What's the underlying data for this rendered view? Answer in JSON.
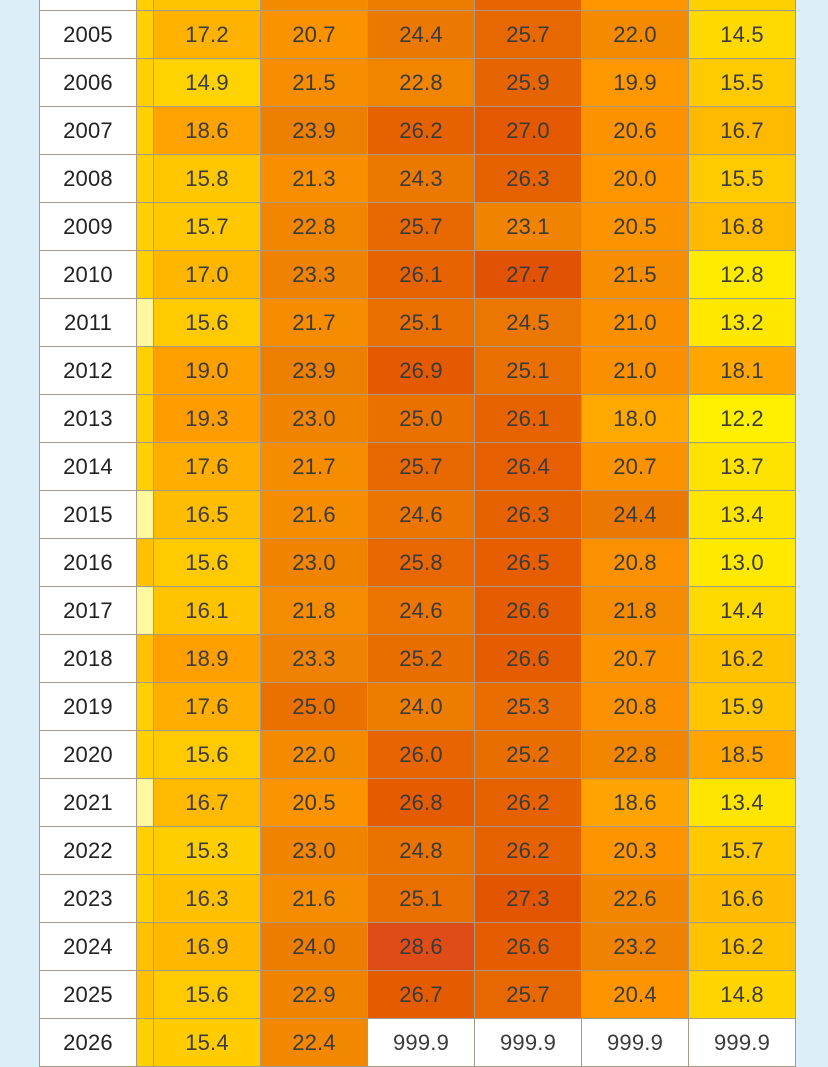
{
  "colors": {
    "missing": "#ffffff",
    "scale": [
      {
        "v": 12.0,
        "c": "#fff200"
      },
      {
        "v": 14.0,
        "c": "#ffe000"
      },
      {
        "v": 16.0,
        "c": "#ffc400"
      },
      {
        "v": 18.0,
        "c": "#ffa800"
      },
      {
        "v": 20.0,
        "c": "#ff9600"
      },
      {
        "v": 22.0,
        "c": "#f48a00"
      },
      {
        "v": 24.0,
        "c": "#ec7d00"
      },
      {
        "v": 26.0,
        "c": "#e76400"
      },
      {
        "v": 27.5,
        "c": "#e35300"
      },
      {
        "v": 29.0,
        "c": "#dd4a20"
      }
    ]
  },
  "chart_data": {
    "type": "heatmap",
    "missing_value": 999.9,
    "rows": [
      {
        "year": "2005",
        "strip": "#ffd000",
        "values": [
          "17.2",
          "20.7",
          "24.4",
          "25.7",
          "22.0",
          "14.5"
        ]
      },
      {
        "year": "2006",
        "strip": "#ffd000",
        "values": [
          "14.9",
          "21.5",
          "22.8",
          "25.9",
          "19.9",
          "15.5"
        ]
      },
      {
        "year": "2007",
        "strip": "#ffd000",
        "values": [
          "18.6",
          "23.9",
          "26.2",
          "27.0",
          "20.6",
          "16.7"
        ]
      },
      {
        "year": "2008",
        "strip": "#ffd000",
        "values": [
          "15.8",
          "21.3",
          "24.3",
          "26.3",
          "20.0",
          "15.5"
        ]
      },
      {
        "year": "2009",
        "strip": "#ffd000",
        "values": [
          "15.7",
          "22.8",
          "25.7",
          "23.1",
          "20.5",
          "16.8"
        ]
      },
      {
        "year": "2010",
        "strip": "#ffd000",
        "values": [
          "17.0",
          "23.3",
          "26.1",
          "27.7",
          "21.5",
          "12.8"
        ]
      },
      {
        "year": "2011",
        "strip": "#fff8a0",
        "values": [
          "15.6",
          "21.7",
          "25.1",
          "24.5",
          "21.0",
          "13.2"
        ]
      },
      {
        "year": "2012",
        "strip": "#ffd000",
        "values": [
          "19.0",
          "23.9",
          "26.9",
          "25.1",
          "21.0",
          "18.1"
        ]
      },
      {
        "year": "2013",
        "strip": "#ffd000",
        "values": [
          "19.3",
          "23.0",
          "25.0",
          "26.1",
          "18.0",
          "12.2"
        ]
      },
      {
        "year": "2014",
        "strip": "#ffd000",
        "values": [
          "17.6",
          "21.7",
          "25.7",
          "26.4",
          "20.7",
          "13.7"
        ]
      },
      {
        "year": "2015",
        "strip": "#fff8a0",
        "values": [
          "16.5",
          "21.6",
          "24.6",
          "26.3",
          "24.4",
          "13.4"
        ]
      },
      {
        "year": "2016",
        "strip": "#ffc000",
        "values": [
          "15.6",
          "23.0",
          "25.8",
          "26.5",
          "20.8",
          "13.0"
        ]
      },
      {
        "year": "2017",
        "strip": "#fff8a0",
        "values": [
          "16.1",
          "21.8",
          "24.6",
          "26.6",
          "21.8",
          "14.4"
        ]
      },
      {
        "year": "2018",
        "strip": "#ffc000",
        "values": [
          "18.9",
          "23.3",
          "25.2",
          "26.6",
          "20.7",
          "16.2"
        ]
      },
      {
        "year": "2019",
        "strip": "#ffd000",
        "values": [
          "17.6",
          "25.0",
          "24.0",
          "25.3",
          "20.8",
          "15.9"
        ]
      },
      {
        "year": "2020",
        "strip": "#ffd000",
        "values": [
          "15.6",
          "22.0",
          "26.0",
          "25.2",
          "22.8",
          "18.5"
        ]
      },
      {
        "year": "2021",
        "strip": "#fff8a0",
        "values": [
          "16.7",
          "20.5",
          "26.8",
          "26.2",
          "18.6",
          "13.4"
        ]
      },
      {
        "year": "2022",
        "strip": "#ffd000",
        "values": [
          "15.3",
          "23.0",
          "24.8",
          "26.2",
          "20.3",
          "15.7"
        ]
      },
      {
        "year": "2023",
        "strip": "#ffd000",
        "values": [
          "16.3",
          "21.6",
          "25.1",
          "27.3",
          "22.6",
          "16.6"
        ]
      },
      {
        "year": "2024",
        "strip": "#ffc000",
        "values": [
          "16.9",
          "24.0",
          "28.6",
          "26.6",
          "23.2",
          "16.2"
        ]
      },
      {
        "year": "2025",
        "strip": "#ffc000",
        "values": [
          "15.6",
          "22.9",
          "26.7",
          "25.7",
          "20.4",
          "14.8"
        ]
      },
      {
        "year": "2026",
        "strip": "#ffd000",
        "values": [
          "15.4",
          "22.4",
          "999.9",
          "999.9",
          "999.9",
          "999.9"
        ]
      }
    ]
  }
}
